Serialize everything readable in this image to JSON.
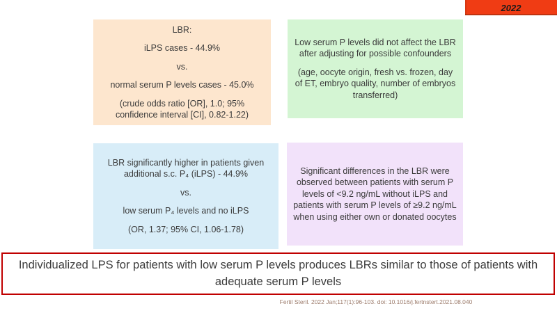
{
  "slide": {
    "year_badge": "2022",
    "conclusion": "Individualized LPS for patients with low serum P levels produces LBRs similar to those of patients with adequate serum P levels",
    "citation": "Fertil Steril. 2022 Jan;117(1):96-103. doi: 10.1016/j.fertnstert.2021.08.040"
  },
  "boxes": {
    "lbr": {
      "bg": "#FDE6CE",
      "lines": [
        "LBR:",
        "iLPS cases - 44.9%",
        "vs.",
        "normal serum P levels cases - 45.0%",
        "(crude odds ratio [OR], 1.0; 95% confidence interval [CI], 0.82-1.22)"
      ]
    },
    "confounders": {
      "bg": "#D4F5D3",
      "lines": [
        "Low serum P levels did not affect the LBR after adjusting for possible confounders",
        "(age, oocyte origin, fresh vs. frozen, day of ET, embryo quality, number of embryos transferred)"
      ]
    },
    "ilps": {
      "bg": "#D8EDF8",
      "lines": [
        "LBR significantly higher in patients given additional s.c. P₄ (iLPS) - 44.9%",
        "vs.",
        "low serum P₄ levels and no iLPS",
        "(OR, 1.37; 95% CI, 1.06-1.78)"
      ]
    },
    "differences": {
      "bg": "#F2E2FA",
      "lines": [
        "Significant differences in the LBR were observed between patients with serum P levels of <9.2 ng/mL without iLPS and patients with serum P levels of ≥9.2 ng/mL when using either own or donated oocytes"
      ]
    }
  },
  "colors": {
    "badge_bg": "#F03C14",
    "conclusion_border": "#C00000",
    "text": "#3b3b3b",
    "citation_text": "#9C7B6B"
  }
}
